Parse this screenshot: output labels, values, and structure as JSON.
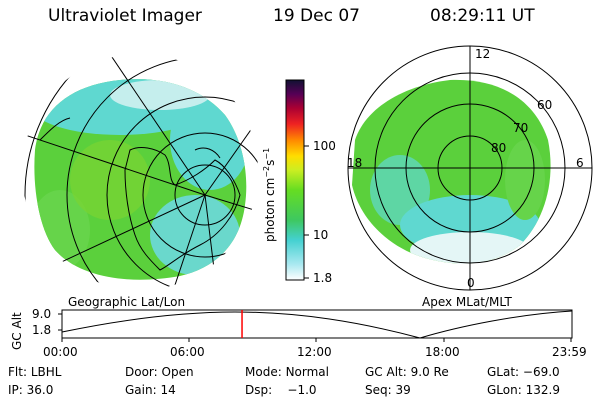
{
  "header": {
    "instrument": "Ultraviolet Imager",
    "date": "19 Dec 07",
    "time": "08:29:11 UT"
  },
  "colorbar": {
    "unit_label": "photon cm",
    "unit_exp1": "−2",
    "unit_mid": "s",
    "unit_exp2": "−1",
    "ticks": [
      "100",
      "10",
      "1.8"
    ]
  },
  "panels": {
    "left_label": "Geographic Lat/Lon",
    "right_label": "Apex MLat/MLT",
    "mlt_labels": [
      "12",
      "18",
      "6",
      "0"
    ],
    "mlat_labels": [
      "60",
      "70",
      "80"
    ]
  },
  "altitude_plot": {
    "ylabel": "GC Alt",
    "yticks": [
      "9.0",
      "1.8"
    ],
    "xticks": [
      "00:00",
      "06:00",
      "12:00",
      "18:00",
      "23:59"
    ],
    "current_time_fraction": 0.353
  },
  "info": {
    "flt_label": "Flt:",
    "flt_value": "LBHL",
    "door_label": "Door:",
    "door_value": "Open",
    "mode_label": "Mode:",
    "mode_value": "Normal",
    "gcalt_label": "GC Alt:",
    "gcalt_value": "9.0 Re",
    "glat_label": "GLat:",
    "glat_value": "−69.0",
    "ip_label": "IP:",
    "ip_value": "36.0",
    "gain_label": "Gain:",
    "gain_value": "14",
    "dsp_label": "Dsp:",
    "dsp_value": "−1.0",
    "seq_label": "Seq:",
    "seq_value": "39",
    "glon_label": "GLon:",
    "glon_value": "132.9"
  },
  "colors": {
    "aurora_green": "#55d23a",
    "aurora_cyan": "#4fd8d8",
    "marker_red": "#ff0000"
  }
}
